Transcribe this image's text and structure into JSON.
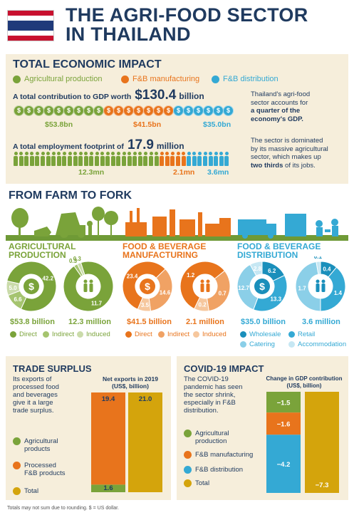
{
  "header": {
    "title_line1": "THE AGRI-FOOD SECTOR",
    "title_line2": "IN THAILAND"
  },
  "colors": {
    "agricultural": "#7aa33a",
    "fb_manufacturing": "#e8741c",
    "fb_distribution": "#34a9d4",
    "total": "#d4a40c",
    "navy": "#1f3a5f",
    "panel_bg": "#f6eedb"
  },
  "econ": {
    "title": "TOTAL ECONOMIC IMPACT",
    "legend": [
      "Agricultural production",
      "F&B manufacturing",
      "F&B distribution"
    ],
    "gdp_label": "A total contribution to GDP worth",
    "gdp_value": "$130.4",
    "gdp_unit": "billion",
    "gdp_parts": [
      "$53.8bn",
      "$41.5bn",
      "$35.0bn"
    ],
    "emp_label": "A total employment footprint of",
    "emp_value": "17.9",
    "emp_unit": "million",
    "emp_parts": [
      "12.3mn",
      "2.1mn",
      "3.6mn"
    ],
    "side_text1_a": "Thailand's agri-food",
    "side_text1_b": "sector accounts for",
    "side_text1_c": "a quarter of the",
    "side_text1_d": "economy's GDP.",
    "side_text2_a": "The sector is dominated",
    "side_text2_b": "by its massive agricultural",
    "side_text2_c": "sector, which makes up",
    "side_text2_d": "two thirds",
    "side_text2_e": " of its jobs."
  },
  "farm": {
    "title": "FROM FARM TO FORK",
    "sections": [
      {
        "title_line1": "AGRICULTURAL",
        "title_line2": "PRODUCTION",
        "gdp_total": "$53.8 billion",
        "jobs_total": "12.3 million",
        "legend": [
          "Direct",
          "Indirect",
          "Induced"
        ]
      },
      {
        "title_line1": "FOOD & BEVERAGE",
        "title_line2": "MANUFACTURING",
        "gdp_total": "$41.5 billion",
        "jobs_total": "2.1 million",
        "legend": [
          "Direct",
          "Indirect",
          "Induced"
        ]
      },
      {
        "title_line1": "FOOD & BEVERAGE",
        "title_line2": "DISTRIBUTION",
        "gdp_total": "$35.0 billion",
        "jobs_total": "3.6 million",
        "legend": [
          "Wholesale",
          "Retail",
          "Catering",
          "Accommodation"
        ]
      }
    ]
  },
  "chart_data": [
    {
      "type": "pie",
      "title": "",
      "categories": [
        "Direct",
        "Indirect",
        "Induced"
      ],
      "values": [
        42.2,
        6.6,
        5.0
      ]
    },
    {
      "type": "pie",
      "title": "",
      "categories": [
        "Direct",
        "Indirect",
        "Induced"
      ],
      "values": [
        11.7,
        0.3,
        0.3
      ]
    },
    {
      "type": "pie",
      "title": "",
      "categories": [
        "Direct",
        "Indirect",
        "Induced"
      ],
      "values": [
        23.4,
        14.6,
        3.5
      ]
    },
    {
      "type": "pie",
      "title": "",
      "categories": [
        "Direct",
        "Indirect",
        "Induced"
      ],
      "values": [
        1.2,
        0.7,
        0.2
      ]
    },
    {
      "type": "pie",
      "title": "",
      "categories": [
        "Wholesale",
        "Retail",
        "Catering",
        "Accommodation"
      ],
      "values": [
        6.2,
        13.3,
        12.7,
        2.8
      ]
    },
    {
      "type": "pie",
      "title": "",
      "categories": [
        "Wholesale",
        "Retail",
        "Catering",
        "Accommodation"
      ],
      "values": [
        0.4,
        1.4,
        1.7,
        0.1
      ]
    },
    {
      "type": "bar",
      "title": "Net exports in 2019 (US$, billion)",
      "categories": [
        "Processed F&B + Agricultural",
        "Total"
      ],
      "series": [
        {
          "name": "Agricultural products",
          "values": [
            1.6,
            0
          ]
        },
        {
          "name": "Processed F&B products",
          "values": [
            19.4,
            0
          ]
        },
        {
          "name": "Total",
          "values": [
            0,
            21.0
          ]
        }
      ],
      "ylim": [
        0,
        21.0
      ]
    },
    {
      "type": "bar",
      "title": "Change in GDP contribution (US$, billion)",
      "categories": [
        "Components",
        "Total"
      ],
      "series": [
        {
          "name": "Agricultural production",
          "values": [
            -1.5,
            0
          ]
        },
        {
          "name": "F&B manufacturing",
          "values": [
            -1.6,
            0
          ]
        },
        {
          "name": "F&B distribution",
          "values": [
            -4.2,
            0
          ]
        },
        {
          "name": "Total",
          "values": [
            0,
            -7.3
          ]
        }
      ],
      "ylim": [
        -7.3,
        0
      ]
    }
  ],
  "trade": {
    "title": "TRADE SURPLUS",
    "text_a": "Its exports of",
    "text_b": "processed food",
    "text_c": "and beverages",
    "text_d": "give it a large",
    "text_e": "trade surplus.",
    "chart_title_a": "Net exports in 2019",
    "chart_title_b": "(US$, billion)",
    "legend": [
      "Agricultural",
      "products",
      "Processed",
      "F&B products",
      "Total"
    ],
    "labels": [
      "19.4",
      "1.6",
      "21.0"
    ]
  },
  "covid": {
    "title": "COVID-19 IMPACT",
    "text_a": "The COVID-19",
    "text_b": "pandemic has seen",
    "text_c": "the sector shrink,",
    "text_d": "especially in F&B",
    "text_e": "distribution.",
    "chart_title_a": "Change in GDP contribution",
    "chart_title_b": "(US$, billion)",
    "legend": [
      "Agricultural",
      "production",
      "F&B manufacturing",
      "F&B distribution",
      "Total"
    ],
    "labels": [
      "−1.5",
      "−1.6",
      "−4.2",
      "−7.3"
    ]
  },
  "footnote": "Totals may not sum due to rounding. $ = US dollar."
}
